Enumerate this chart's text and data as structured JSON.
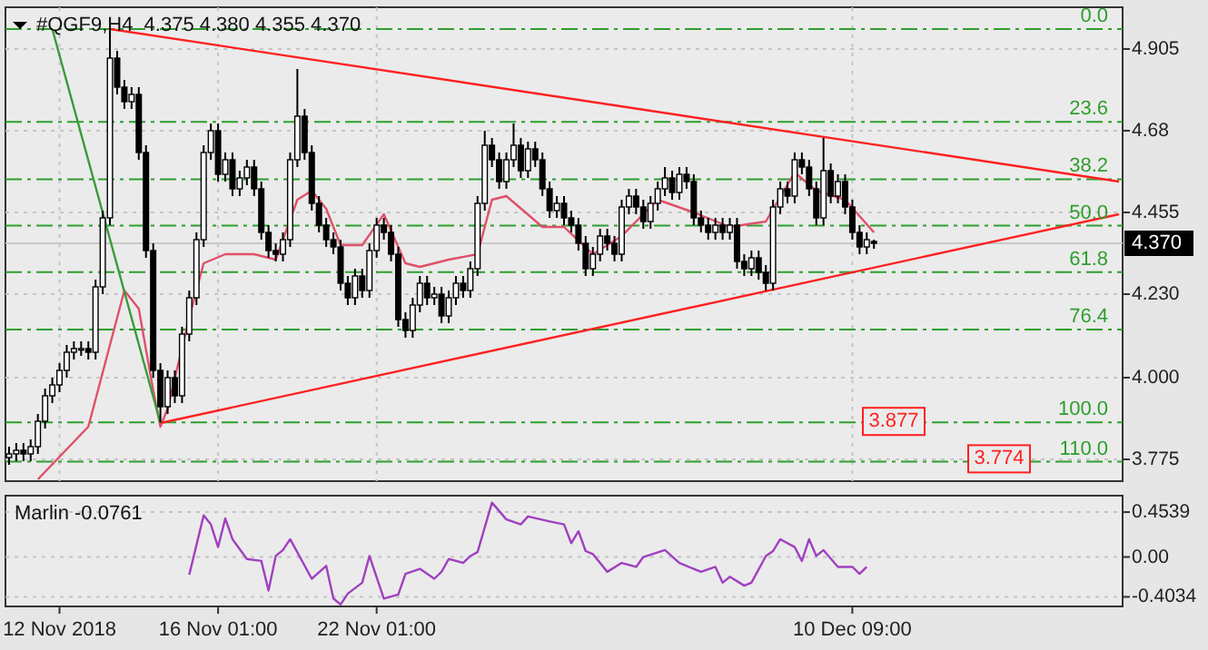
{
  "chart_data": [
    {
      "type": "candlestick",
      "title": "#QGF9,H4  4.375 4.380 4.355 4.370",
      "categories": [
        null,
        null,
        null,
        null,
        null,
        null,
        null,
        null,
        null,
        null,
        null,
        null,
        null,
        null,
        null,
        null,
        null,
        null,
        null,
        null,
        null,
        null,
        null,
        null,
        null,
        null,
        null,
        null,
        null,
        null,
        null,
        null,
        null,
        null,
        null,
        null,
        null,
        null,
        null,
        null,
        null,
        null,
        null,
        null,
        null,
        null,
        null,
        null,
        null,
        null,
        null,
        null,
        null,
        null,
        null,
        null,
        null,
        null,
        null,
        null,
        null,
        null,
        null,
        null,
        null,
        null,
        null,
        null,
        null,
        null,
        null,
        null,
        null,
        null,
        null,
        null,
        null,
        null,
        null,
        null,
        null,
        null,
        null,
        null,
        null,
        null,
        null,
        null,
        null,
        null,
        null,
        null,
        null,
        null,
        null,
        null,
        null,
        null,
        null,
        null,
        null,
        null,
        null,
        null,
        null,
        null,
        null,
        null,
        null,
        null,
        null,
        null,
        null,
        null,
        null,
        null,
        null,
        null,
        null,
        null,
        null,
        null,
        null,
        null,
        null,
        null,
        null,
        null,
        null,
        null,
        null,
        null,
        null,
        null,
        null,
        null,
        null,
        null,
        null,
        null,
        null,
        null,
        null,
        null,
        null,
        null,
        null,
        null,
        null,
        null,
        null,
        null,
        null,
        null,
        null
      ],
      "ohlc": [
        [
          3.78,
          3.81,
          3.76,
          3.79
        ],
        [
          3.79,
          3.82,
          3.77,
          3.8
        ],
        [
          3.8,
          3.82,
          3.77,
          3.79
        ],
        [
          3.79,
          3.83,
          3.77,
          3.81
        ],
        [
          3.81,
          3.9,
          3.79,
          3.88
        ],
        [
          3.88,
          3.97,
          3.86,
          3.95
        ],
        [
          3.95,
          4.0,
          3.93,
          3.98
        ],
        [
          3.98,
          4.04,
          3.96,
          4.02
        ],
        [
          4.02,
          4.09,
          4.0,
          4.07
        ],
        [
          4.07,
          4.1,
          4.05,
          4.08
        ],
        [
          4.08,
          4.1,
          4.06,
          4.08
        ],
        [
          4.08,
          4.1,
          4.05,
          4.07
        ],
        [
          4.07,
          4.27,
          4.05,
          4.25
        ],
        [
          4.25,
          4.46,
          4.23,
          4.44
        ],
        [
          4.44,
          4.96,
          4.42,
          4.88
        ],
        [
          4.88,
          4.9,
          4.78,
          4.8
        ],
        [
          4.8,
          4.82,
          4.74,
          4.76
        ],
        [
          4.76,
          4.8,
          4.74,
          4.78
        ],
        [
          4.78,
          4.8,
          4.6,
          4.62
        ],
        [
          4.62,
          4.64,
          4.33,
          4.35
        ],
        [
          4.35,
          4.37,
          4.0,
          4.02
        ],
        [
          4.02,
          4.04,
          3.877,
          3.92
        ],
        [
          3.92,
          4.02,
          3.9,
          4.0
        ],
        [
          4.0,
          4.02,
          3.93,
          3.95
        ],
        [
          3.95,
          4.14,
          3.93,
          4.12
        ],
        [
          4.12,
          4.24,
          4.1,
          4.22
        ],
        [
          4.22,
          4.4,
          4.2,
          4.38
        ],
        [
          4.38,
          4.64,
          4.36,
          4.62
        ],
        [
          4.62,
          4.7,
          4.6,
          4.68
        ],
        [
          4.68,
          4.7,
          4.54,
          4.56
        ],
        [
          4.56,
          4.62,
          4.54,
          4.6
        ],
        [
          4.6,
          4.62,
          4.5,
          4.52
        ],
        [
          4.52,
          4.57,
          4.5,
          4.55
        ],
        [
          4.55,
          4.6,
          4.53,
          4.58
        ],
        [
          4.58,
          4.6,
          4.5,
          4.52
        ],
        [
          4.52,
          4.54,
          4.38,
          4.4
        ],
        [
          4.4,
          4.42,
          4.33,
          4.35
        ],
        [
          4.35,
          4.37,
          4.32,
          4.34
        ],
        [
          4.34,
          4.4,
          4.32,
          4.38
        ],
        [
          4.38,
          4.62,
          4.36,
          4.6
        ],
        [
          4.6,
          4.85,
          4.58,
          4.72
        ],
        [
          4.72,
          4.74,
          4.6,
          4.62
        ],
        [
          4.62,
          4.64,
          4.46,
          4.48
        ],
        [
          4.48,
          4.5,
          4.4,
          4.42
        ],
        [
          4.42,
          4.44,
          4.36,
          4.38
        ],
        [
          4.38,
          4.4,
          4.34,
          4.36
        ],
        [
          4.36,
          4.38,
          4.24,
          4.26
        ],
        [
          4.26,
          4.28,
          4.2,
          4.22
        ],
        [
          4.22,
          4.3,
          4.2,
          4.28
        ],
        [
          4.28,
          4.3,
          4.22,
          4.24
        ],
        [
          4.24,
          4.37,
          4.22,
          4.35
        ],
        [
          4.35,
          4.44,
          4.33,
          4.42
        ],
        [
          4.42,
          4.44,
          4.38,
          4.4
        ],
        [
          4.4,
          4.42,
          4.32,
          4.34
        ],
        [
          4.34,
          4.36,
          4.14,
          4.16
        ],
        [
          4.16,
          4.18,
          4.11,
          4.13
        ],
        [
          4.13,
          4.22,
          4.11,
          4.2
        ],
        [
          4.2,
          4.28,
          4.18,
          4.26
        ],
        [
          4.26,
          4.28,
          4.2,
          4.22
        ],
        [
          4.22,
          4.25,
          4.2,
          4.23
        ],
        [
          4.23,
          4.25,
          4.15,
          4.17
        ],
        [
          4.17,
          4.24,
          4.15,
          4.22
        ],
        [
          4.22,
          4.28,
          4.2,
          4.26
        ],
        [
          4.26,
          4.28,
          4.22,
          4.24
        ],
        [
          4.24,
          4.32,
          4.22,
          4.3
        ],
        [
          4.3,
          4.5,
          4.28,
          4.48
        ],
        [
          4.48,
          4.68,
          4.46,
          4.64
        ],
        [
          4.64,
          4.66,
          4.58,
          4.6
        ],
        [
          4.6,
          4.62,
          4.52,
          4.54
        ],
        [
          4.54,
          4.62,
          4.52,
          4.6
        ],
        [
          4.6,
          4.7,
          4.58,
          4.64
        ],
        [
          4.64,
          4.66,
          4.55,
          4.57
        ],
        [
          4.57,
          4.65,
          4.55,
          4.63
        ],
        [
          4.63,
          4.65,
          4.58,
          4.6
        ],
        [
          4.6,
          4.62,
          4.5,
          4.52
        ],
        [
          4.52,
          4.54,
          4.44,
          4.46
        ],
        [
          4.46,
          4.5,
          4.44,
          4.48
        ],
        [
          4.48,
          4.5,
          4.42,
          4.44
        ],
        [
          4.44,
          4.46,
          4.4,
          4.42
        ],
        [
          4.42,
          4.44,
          4.35,
          4.37
        ],
        [
          4.37,
          4.39,
          4.28,
          4.3
        ],
        [
          4.3,
          4.36,
          4.28,
          4.34
        ],
        [
          4.34,
          4.41,
          4.32,
          4.39
        ],
        [
          4.39,
          4.41,
          4.35,
          4.37
        ],
        [
          4.37,
          4.39,
          4.32,
          4.34
        ],
        [
          4.34,
          4.49,
          4.32,
          4.47
        ],
        [
          4.47,
          4.52,
          4.45,
          4.5
        ],
        [
          4.5,
          4.52,
          4.45,
          4.47
        ],
        [
          4.47,
          4.49,
          4.41,
          4.43
        ],
        [
          4.43,
          4.5,
          4.41,
          4.48
        ],
        [
          4.48,
          4.54,
          4.46,
          4.52
        ],
        [
          4.52,
          4.58,
          4.5,
          4.55
        ],
        [
          4.55,
          4.57,
          4.49,
          4.51
        ],
        [
          4.51,
          4.58,
          4.49,
          4.56
        ],
        [
          4.56,
          4.58,
          4.52,
          4.54
        ],
        [
          4.54,
          4.56,
          4.42,
          4.44
        ],
        [
          4.44,
          4.46,
          4.4,
          4.42
        ],
        [
          4.42,
          4.44,
          4.38,
          4.4
        ],
        [
          4.4,
          4.44,
          4.38,
          4.42
        ],
        [
          4.42,
          4.44,
          4.38,
          4.4
        ],
        [
          4.4,
          4.44,
          4.38,
          4.42
        ],
        [
          4.42,
          4.44,
          4.3,
          4.32
        ],
        [
          4.32,
          4.34,
          4.28,
          4.3
        ],
        [
          4.3,
          4.35,
          4.28,
          4.33
        ],
        [
          4.33,
          4.35,
          4.27,
          4.29
        ],
        [
          4.29,
          4.31,
          4.24,
          4.26
        ],
        [
          4.26,
          4.49,
          4.24,
          4.47
        ],
        [
          4.47,
          4.54,
          4.45,
          4.52
        ],
        [
          4.52,
          4.54,
          4.48,
          4.5
        ],
        [
          4.5,
          4.62,
          4.48,
          4.6
        ],
        [
          4.6,
          4.62,
          4.56,
          4.58
        ],
        [
          4.58,
          4.6,
          4.5,
          4.52
        ],
        [
          4.52,
          4.54,
          4.42,
          4.44
        ],
        [
          4.44,
          4.66,
          4.42,
          4.57
        ],
        [
          4.57,
          4.59,
          4.48,
          4.5
        ],
        [
          4.5,
          4.56,
          4.48,
          4.54
        ],
        [
          4.54,
          4.56,
          4.45,
          4.47
        ],
        [
          4.47,
          4.49,
          4.38,
          4.4
        ],
        [
          4.4,
          4.42,
          4.34,
          4.36
        ],
        [
          4.36,
          4.4,
          4.34,
          4.38
        ],
        [
          4.375,
          4.38,
          4.355,
          4.37
        ],
        null,
        null,
        null,
        null,
        null,
        null,
        null,
        null,
        null,
        null,
        null,
        null,
        null,
        null,
        null,
        null,
        null,
        null,
        null,
        null,
        null,
        null,
        null,
        null,
        null,
        null,
        null,
        null,
        null,
        null,
        null,
        null,
        null,
        null
      ],
      "series": [
        {
          "type": "line",
          "color": "#e0506a",
          "values": [
            null,
            null,
            null,
            null,
            3.72,
            null,
            null,
            null,
            null,
            null,
            null,
            3.865,
            null,
            null,
            4.09,
            null,
            4.24,
            null,
            4.19,
            null,
            3.965,
            3.865,
            3.915,
            null,
            null,
            4.165,
            null,
            4.315,
            null,
            null,
            4.34,
            null,
            null,
            null,
            4.34,
            null,
            null,
            4.325,
            null,
            null,
            4.49,
            null,
            4.515,
            null,
            4.465,
            null,
            4.365,
            null,
            null,
            4.365,
            null,
            null,
            4.45,
            null,
            null,
            4.315,
            null,
            4.305,
            null,
            null,
            null,
            4.325,
            null,
            null,
            null,
            4.34,
            null,
            4.49,
            null,
            4.5,
            null,
            null,
            null,
            null,
            4.415,
            null,
            null,
            4.415,
            null,
            null,
            null,
            4.34,
            null,
            null,
            null,
            4.39,
            null,
            null,
            null,
            null,
            4.49,
            null,
            null,
            null,
            null,
            4.455,
            null,
            null,
            null,
            null,
            4.415,
            null,
            null,
            null,
            null,
            4.43,
            null,
            null,
            null,
            4.565,
            null,
            null,
            4.515,
            null,
            null,
            null,
            4.49,
            null,
            null,
            null,
            4.4,
            null,
            null,
            null,
            null,
            null,
            null,
            null,
            null,
            null,
            null,
            null,
            null,
            null,
            null,
            null,
            null,
            null,
            null,
            null,
            null,
            null,
            null,
            null,
            null,
            null,
            null,
            null,
            null,
            null,
            null,
            null,
            null,
            null,
            null
          ]
        },
        {
          "type": "line",
          "color": "#ff2020",
          "values": [
            null,
            null,
            null,
            null,
            null,
            null,
            null,
            null,
            null,
            null,
            null,
            null,
            null,
            null,
            4.96,
            null,
            null,
            null,
            null,
            null,
            null,
            null,
            null,
            null,
            null,
            null,
            null,
            null,
            null,
            null,
            null,
            null,
            null,
            null,
            null,
            null,
            null,
            null,
            null,
            null,
            null,
            null,
            null,
            null,
            null,
            null,
            null,
            null,
            null,
            null,
            null,
            null,
            null,
            null,
            null,
            null,
            null,
            null,
            null,
            null,
            null,
            null,
            null,
            null,
            null,
            null,
            null,
            null,
            null,
            null,
            null,
            null,
            null,
            null,
            null,
            null,
            null,
            null,
            null,
            null,
            null,
            null,
            null,
            null,
            null,
            null,
            null,
            null,
            null,
            null,
            null,
            null,
            null,
            null,
            null,
            null,
            null,
            null,
            null,
            null,
            null,
            null,
            null,
            null,
            null,
            null,
            null,
            null,
            null,
            null,
            null,
            null,
            null,
            null,
            null,
            null,
            null,
            null,
            null,
            null,
            null,
            null,
            null,
            null,
            null,
            null,
            null,
            null,
            null,
            null,
            null,
            null,
            null,
            null,
            null,
            null,
            null,
            null,
            null,
            null,
            null,
            null,
            null,
            null,
            null,
            null,
            null,
            null,
            null,
            null,
            null,
            null,
            null,
            null,
            4.54
          ]
        },
        {
          "type": "line",
          "color": "#ff2020",
          "values": [
            null,
            null,
            null,
            null,
            null,
            null,
            null,
            null,
            null,
            null,
            null,
            null,
            null,
            null,
            null,
            null,
            null,
            null,
            null,
            null,
            null,
            3.875,
            null,
            null,
            null,
            null,
            null,
            null,
            null,
            null,
            null,
            null,
            null,
            null,
            null,
            null,
            null,
            null,
            null,
            null,
            null,
            null,
            null,
            null,
            null,
            null,
            null,
            null,
            null,
            null,
            null,
            null,
            null,
            null,
            null,
            null,
            null,
            null,
            null,
            null,
            null,
            null,
            null,
            null,
            null,
            null,
            null,
            null,
            null,
            null,
            null,
            null,
            null,
            null,
            null,
            null,
            null,
            null,
            null,
            null,
            null,
            null,
            null,
            null,
            null,
            null,
            null,
            null,
            null,
            null,
            null,
            null,
            null,
            null,
            null,
            null,
            null,
            null,
            null,
            null,
            null,
            null,
            null,
            null,
            null,
            null,
            null,
            null,
            null,
            null,
            null,
            null,
            null,
            null,
            null,
            null,
            null,
            null,
            null,
            null,
            null,
            null,
            null,
            null,
            null,
            null,
            null,
            null,
            null,
            null,
            null,
            null,
            null,
            null,
            null,
            null,
            null,
            null,
            null,
            null,
            null,
            null,
            null,
            null,
            null,
            null,
            null,
            null,
            null,
            null,
            null,
            null,
            null,
            null,
            4.45
          ]
        },
        {
          "type": "line",
          "color": "#3a9a3a",
          "values": [
            null,
            null,
            null,
            null,
            null,
            null,
            4.96,
            null,
            null,
            null,
            null,
            null,
            null,
            null,
            null,
            null,
            null,
            null,
            null,
            null,
            null,
            3.875,
            null,
            null,
            null,
            null,
            null,
            null,
            null,
            null,
            null,
            null,
            null,
            null,
            null,
            null,
            null,
            null,
            null,
            null,
            null,
            null,
            null,
            null,
            null,
            null,
            null,
            null,
            null,
            null,
            null,
            null,
            null,
            null,
            null,
            null,
            null,
            null,
            null,
            null,
            null,
            null,
            null,
            null,
            null,
            null,
            null,
            null,
            null,
            null,
            null,
            null,
            null,
            null,
            null,
            null,
            null,
            null,
            null,
            null,
            null,
            null,
            null,
            null,
            null,
            null,
            null,
            null,
            null,
            null,
            null,
            null,
            null,
            null,
            null,
            null,
            null,
            null,
            null,
            null,
            null,
            null,
            null,
            null,
            null,
            null,
            null,
            null,
            null,
            null,
            null,
            null,
            null,
            null,
            null,
            null,
            null,
            null,
            null,
            null,
            null,
            null,
            null,
            null,
            null,
            null,
            null,
            null,
            null,
            null,
            null,
            null,
            null,
            null,
            null,
            null,
            null,
            null,
            null,
            null,
            null,
            null,
            null,
            null,
            null,
            null,
            null,
            null,
            null,
            null,
            null,
            null,
            null,
            null,
            null
          ]
        }
      ],
      "ylim": [
        3.715,
        5.02
      ],
      "yticks": [
        4.905,
        4.68,
        4.455,
        {
          "value": 4.23,
          "label": "4.230"
        },
        {
          "value": 4,
          "label": "4.000"
        },
        3.775
      ],
      "y2lim": [
        114.96,
        -5.54
      ],
      "ref_lines": [
        {
          "axis": "y2",
          "value": 0,
          "label": "0.0",
          "color": "#2e9e2e",
          "line_style": "dashed"
        },
        {
          "axis": "y2",
          "value": 23.6,
          "label": "23.6",
          "color": "#2e9e2e",
          "line_style": "dashed"
        },
        {
          "axis": "y2",
          "value": 38.2,
          "label": "38.2",
          "color": "#2e9e2e",
          "line_style": "dashed"
        },
        {
          "axis": "y2",
          "value": 50,
          "label": "50.0",
          "color": "#2e9e2e",
          "line_style": "dashed"
        },
        {
          "axis": "y2",
          "value": 61.8,
          "label": "61.8",
          "color": "#2e9e2e",
          "line_style": "dashed"
        },
        {
          "axis": "y2",
          "value": 76.4,
          "label": "76.4",
          "color": "#2e9e2e",
          "line_style": "dashed"
        },
        {
          "axis": "y2",
          "value": 100,
          "label": "100.0",
          "color": "#2e9e2e",
          "line_style": "dashed"
        },
        {
          "axis": "y2",
          "value": 110,
          "label": "110.0",
          "color": "#2e9e2e",
          "line_style": "dashed"
        },
        {
          "axis": "y",
          "value": 4.37,
          "label": "4.370",
          "color": "#c8c8c8",
          "line_style": "solid"
        }
      ],
      "annotations": [
        {
          "text": "3.877",
          "y": 3.877
        },
        {
          "text": "3.774",
          "y": 3.774
        }
      ],
      "grid": true,
      "tick_labels": "y"
    },
    {
      "type": "line",
      "title": "Marlin -0.0761",
      "categories": [
        null,
        null,
        null,
        null,
        null,
        null,
        null,
        "12 Nov 2018",
        null,
        null,
        null,
        null,
        null,
        null,
        null,
        null,
        null,
        null,
        null,
        null,
        null,
        null,
        null,
        null,
        null,
        null,
        null,
        null,
        null,
        "16 Nov 01:00",
        null,
        null,
        null,
        null,
        null,
        null,
        null,
        null,
        null,
        null,
        null,
        null,
        null,
        null,
        null,
        null,
        null,
        null,
        null,
        null,
        null,
        "22 Nov 01:00",
        null,
        null,
        null,
        null,
        null,
        null,
        null,
        null,
        null,
        null,
        null,
        null,
        null,
        null,
        null,
        null,
        null,
        null,
        null,
        null,
        null,
        null,
        null,
        null,
        null,
        null,
        null,
        null,
        null,
        null,
        null,
        null,
        null,
        null,
        null,
        null,
        null,
        null,
        null,
        null,
        null,
        null,
        null,
        null,
        null,
        null,
        null,
        null,
        null,
        null,
        null,
        null,
        null,
        null,
        null,
        null,
        null,
        null,
        null,
        null,
        null,
        null,
        null,
        null,
        null,
        "10 Dec 09:00",
        null,
        null,
        null,
        null,
        null,
        null,
        null,
        null,
        null,
        null,
        null,
        null,
        null,
        null,
        null,
        null,
        null,
        null,
        null,
        null,
        null,
        null,
        null,
        null,
        null,
        null,
        null,
        null,
        null,
        null,
        null,
        null,
        null,
        null,
        null,
        null,
        null
      ],
      "series": [
        {
          "color": "#a040c0",
          "values": [
            null,
            null,
            null,
            null,
            null,
            null,
            null,
            null,
            null,
            null,
            null,
            null,
            null,
            null,
            null,
            null,
            null,
            null,
            null,
            null,
            null,
            null,
            null,
            null,
            null,
            -0.18,
            null,
            0.42,
            0.33,
            0.1,
            0.39,
            0.18,
            null,
            -0.02,
            null,
            -0.04,
            -0.34,
            0.01,
            0.07,
            0.18,
            null,
            null,
            -0.22,
            null,
            -0.09,
            -0.42,
            -0.48,
            -0.37,
            null,
            -0.26,
            0.01,
            null,
            -0.42,
            null,
            -0.38,
            -0.17,
            null,
            -0.12,
            null,
            -0.22,
            -0.15,
            -0.02,
            null,
            -0.06,
            0.01,
            0.05,
            0.3,
            0.55,
            null,
            0.38,
            null,
            0.33,
            0.41,
            null,
            null,
            0.36,
            null,
            0.33,
            0.14,
            0.26,
            0.06,
            0.03,
            null,
            -0.15,
            null,
            -0.06,
            null,
            -0.1,
            0,
            null,
            null,
            0.07,
            null,
            -0.06,
            null,
            null,
            -0.15,
            null,
            -0.1,
            -0.26,
            -0.2,
            null,
            -0.29,
            -0.26,
            null,
            0.01,
            0.06,
            0.18,
            null,
            0.1,
            -0.04,
            0.18,
            0.01,
            0.07,
            null,
            -0.1,
            null,
            -0.1,
            -0.17,
            -0.1,
            null,
            null,
            null,
            null,
            null,
            null,
            null,
            null,
            null,
            null,
            null,
            null,
            null,
            null,
            null,
            null,
            null,
            null,
            null,
            null,
            null,
            null,
            null,
            null,
            null,
            null,
            null,
            null,
            null,
            null,
            null,
            null,
            null,
            null,
            null
          ]
        }
      ],
      "ylim": [
        -0.5,
        0.62
      ],
      "yticks": [
        0.4539,
        {
          "value": 0,
          "label": "0.00"
        },
        -0.4034
      ],
      "grid": "y"
    }
  ]
}
